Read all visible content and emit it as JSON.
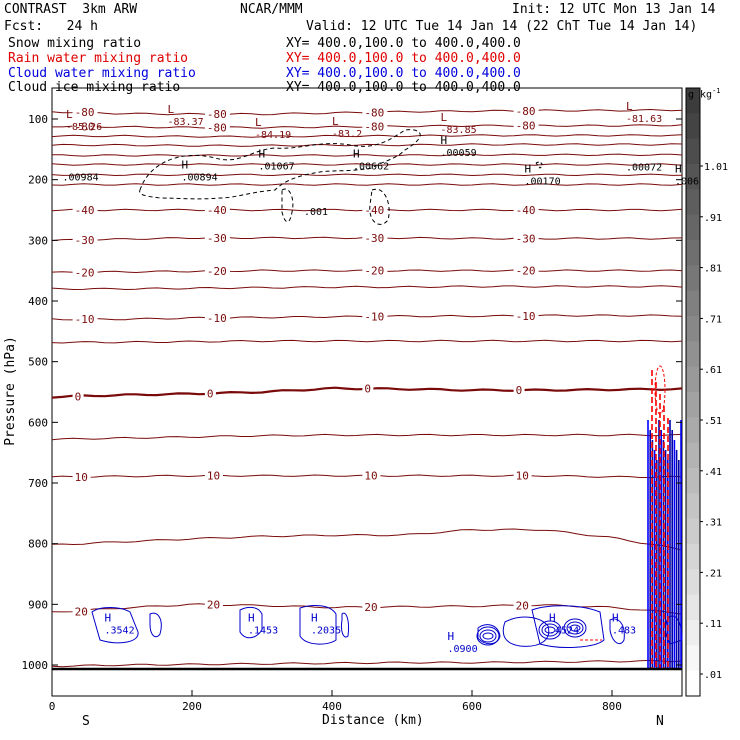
{
  "header": {
    "model": "CONTRAST  3km ARW",
    "org": "NCAR/MMM",
    "init": "Init: 12 UTC Mon 13 Jan 14",
    "fcst": "Fcst:   24 h",
    "valid": "Valid: 12 UTC Tue 14 Jan 14 (22 ChT Tue 14 Jan 14)",
    "fields": [
      {
        "name": "Snow mixing ratio",
        "xy": "XY= 400.0,100.0 to 400.0,400.0",
        "color": "#000000"
      },
      {
        "name": "Rain water mixing ratio",
        "xy": "XY= 400.0,100.0 to 400.0,400.0",
        "color": "#e00000"
      },
      {
        "name": "Cloud water mixing ratio",
        "xy": "XY= 400.0,100.0 to 400.0,400.0",
        "color": "#0000dd"
      },
      {
        "name": "Cloud ice mixing ratio",
        "xy": "XY= 400.0,100.0 to 400.0,400.0",
        "color": "#000000"
      }
    ]
  },
  "chart_data": {
    "type": "line",
    "xlabel": "Distance (km)",
    "ylabel": "Pressure (hPa)",
    "xlim": [
      0,
      900
    ],
    "ylim": [
      1050,
      50
    ],
    "x_ticks": [
      0,
      200,
      400,
      600,
      800
    ],
    "y_ticks": [
      100,
      200,
      300,
      400,
      500,
      600,
      700,
      800,
      900,
      1000
    ],
    "x_end_labels": {
      "left": "S",
      "right": "N"
    },
    "temperature_contours": [
      {
        "label": "-80",
        "y": [
          88,
          91,
          92,
          92,
          90,
          88,
          87,
          86,
          86,
          85
        ]
      },
      {
        "label": "-80",
        "y": [
          112,
          113,
          114,
          114,
          113,
          112,
          111,
          111,
          111,
          110
        ]
      },
      {
        "label": "",
        "y": [
          128,
          128,
          129,
          129,
          128,
          128,
          127,
          127,
          127,
          127
        ]
      },
      {
        "label": "",
        "y": [
          143,
          143,
          144,
          144,
          143,
          143,
          142,
          142,
          142,
          142
        ]
      },
      {
        "label": "",
        "y": [
          160,
          160,
          160,
          160,
          160,
          160,
          159,
          159,
          159,
          159
        ]
      },
      {
        "label": "",
        "y": [
          175,
          175,
          175,
          175,
          175,
          175,
          175,
          175,
          175,
          175
        ]
      },
      {
        "label": "",
        "y": [
          192,
          192,
          192,
          192,
          192,
          192,
          192,
          192,
          192,
          192
        ]
      },
      {
        "label": "",
        "y": [
          208,
          208,
          208,
          208,
          208,
          208,
          208,
          208,
          208,
          208
        ]
      },
      {
        "label": "-40",
        "y": [
          250,
          250,
          250,
          250,
          250,
          250,
          250,
          250,
          250,
          250
        ]
      },
      {
        "label": "-30",
        "y": [
          300,
          298,
          296,
          296,
          296,
          296,
          297,
          297,
          297,
          297
        ]
      },
      {
        "label": "-20",
        "y": [
          353,
          352,
          351,
          350,
          350,
          350,
          350,
          350,
          350,
          350
        ]
      },
      {
        "label": "",
        "y": [
          380,
          380,
          379,
          378,
          377,
          377,
          376,
          376,
          376,
          376
        ]
      },
      {
        "label": "-10",
        "y": [
          430,
          430,
          428,
          427,
          426,
          425,
          425,
          424,
          424,
          424
        ]
      },
      {
        "label": "",
        "y": [
          468,
          468,
          467,
          466,
          466,
          466,
          466,
          466,
          466,
          466
        ]
      },
      {
        "label": "0",
        "y": [
          558,
          555,
          553,
          550,
          544,
          545,
          547,
          547,
          546,
          545
        ]
      },
      {
        "label": "",
        "y": [
          628,
          626,
          624,
          622,
          621,
          621,
          621,
          621,
          621,
          621
        ]
      },
      {
        "label": "10",
        "y": [
          690,
          689,
          688,
          688,
          688,
          688,
          688,
          688,
          690,
          690
        ]
      },
      {
        "label": "",
        "y": [
          802,
          797,
          792,
          788,
          786,
          786,
          777,
          777,
          790,
          810
        ]
      },
      {
        "label": "20",
        "y": [
          913,
          906,
          900,
          902,
          905,
          904,
          903,
          901,
          905,
          915
        ]
      },
      {
        "label": "",
        "y": [
          1002,
          1000,
          999,
          998,
          997,
          996,
          996,
          995,
          994,
          993
        ]
      }
    ],
    "temperature_x": [
      0,
      100,
      200,
      300,
      400,
      500,
      600,
      700,
      800,
      900
    ],
    "min_labels": [
      {
        "x": 20,
        "p": 115,
        "letter": "L",
        "value": "-85.26"
      },
      {
        "x": 165,
        "p": 107,
        "letter": "L",
        "value": "-83.37"
      },
      {
        "x": 290,
        "p": 128,
        "letter": "L",
        "value": "-84.19"
      },
      {
        "x": 400,
        "p": 126,
        "letter": "L",
        "value": "-83.2"
      },
      {
        "x": 555,
        "p": 120,
        "letter": "L",
        "value": "-83.85"
      },
      {
        "x": 820,
        "p": 102,
        "letter": "L",
        "value": "-81.63"
      }
    ],
    "max_labels": [
      {
        "x": 15,
        "p": 198,
        "letter": "",
        "value": ".00984"
      },
      {
        "x": 185,
        "p": 198,
        "letter": "H",
        "value": ".00894"
      },
      {
        "x": 295,
        "p": 180,
        "letter": "H",
        "value": ".01067"
      },
      {
        "x": 430,
        "p": 180,
        "letter": "H",
        "value": ".00662"
      },
      {
        "x": 555,
        "p": 158,
        "letter": "H",
        "value": ".00059"
      },
      {
        "x": 675,
        "p": 205,
        "letter": "H",
        "value": ".00170"
      },
      {
        "x": 820,
        "p": 182,
        "letter": "",
        "value": ".00072"
      },
      {
        "x": 890,
        "p": 205,
        "letter": "H",
        "value": ".006"
      },
      {
        "x": 360,
        "p": 255,
        "letter": "",
        "value": ".001"
      }
    ],
    "cloud_water_labels": [
      {
        "x": 75,
        "p": 945,
        "letter": "H",
        "value": ".3542"
      },
      {
        "x": 280,
        "p": 945,
        "letter": "H",
        "value": ".1453"
      },
      {
        "x": 370,
        "p": 945,
        "letter": "H",
        "value": ".2035"
      },
      {
        "x": 565,
        "p": 975,
        "letter": "H",
        "value": ".0900"
      },
      {
        "x": 710,
        "p": 945,
        "letter": "H",
        "value": ".4524"
      },
      {
        "x": 800,
        "p": 945,
        "letter": "H",
        "value": ".483"
      }
    ],
    "colorbar": {
      "unit": "g kg",
      "unit_exp": "-1",
      "levels": [
        "1.01",
        ".91",
        ".81",
        ".71",
        ".61",
        ".51",
        ".41",
        ".31",
        ".21",
        ".11",
        ".01"
      ]
    }
  }
}
